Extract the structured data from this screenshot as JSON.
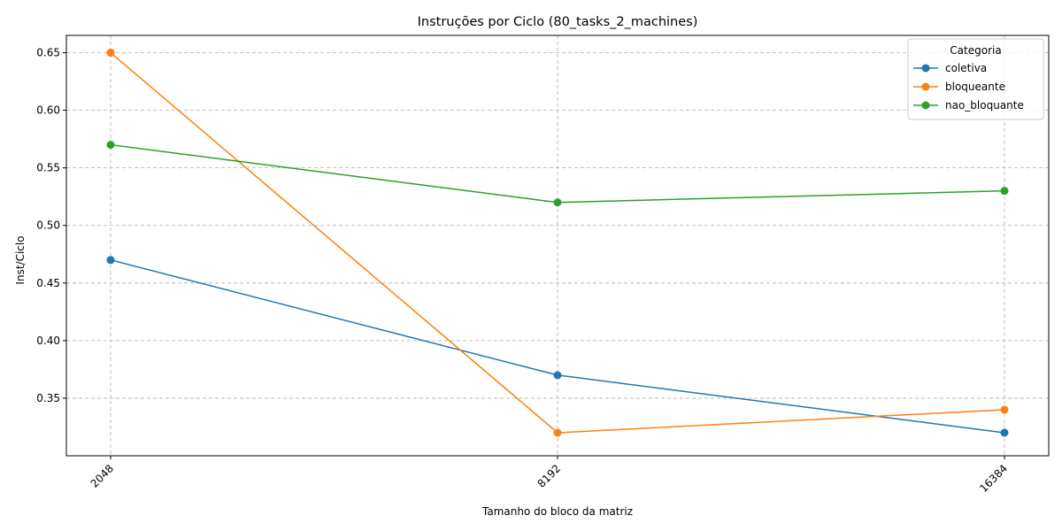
{
  "chart_data": {
    "type": "line",
    "title": "Instruções por Ciclo (80_tasks_2_machines)",
    "xlabel": "Tamanho do bloco da matriz",
    "ylabel": "Inst/Ciclo",
    "categories": [
      "2048",
      "8192",
      "16384"
    ],
    "ylim": [
      0.3,
      0.665
    ],
    "yticks": [
      "0.35",
      "0.40",
      "0.45",
      "0.50",
      "0.55",
      "0.60",
      "0.65"
    ],
    "grid": true,
    "legend": {
      "title": "Categoria",
      "placement": "top-right"
    },
    "series": [
      {
        "name": "coletiva",
        "color": "#1f77b4",
        "values": [
          0.47,
          0.37,
          0.32
        ]
      },
      {
        "name": "bloqueante",
        "color": "#ff7f0e",
        "values": [
          0.65,
          0.32,
          0.34
        ]
      },
      {
        "name": "nao_bloquante",
        "color": "#2ca02c",
        "values": [
          0.57,
          0.52,
          0.53
        ]
      }
    ]
  }
}
